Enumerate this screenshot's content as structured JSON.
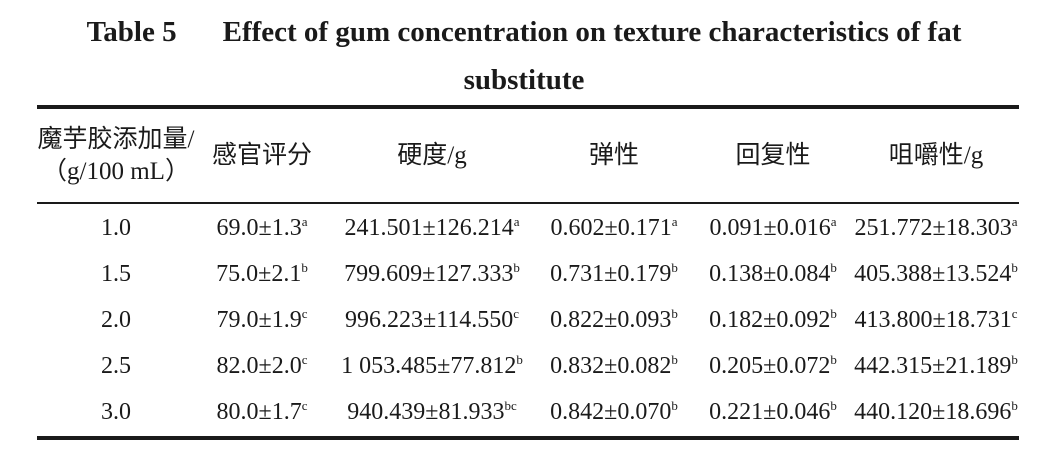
{
  "caption": {
    "number": "Table 5",
    "title_line1": "Effect of gum concentration on texture characteristics of fat",
    "title_line2": "substitute"
  },
  "table": {
    "headers": [
      {
        "line1": "魔芋胶添加量/",
        "line2": "（g/100 mL）"
      },
      {
        "line1": "感官评分",
        "line2": ""
      },
      {
        "line1": "硬度/g",
        "line2": ""
      },
      {
        "line1": "弹性",
        "line2": ""
      },
      {
        "line1": "回复性",
        "line2": ""
      },
      {
        "line1": "咀嚼性/g",
        "line2": ""
      }
    ],
    "rows": [
      {
        "cells": [
          {
            "v": "1.0",
            "s": ""
          },
          {
            "v": "69.0±1.3",
            "s": "a"
          },
          {
            "v": "241.501±126.214",
            "s": "a"
          },
          {
            "v": "0.602±0.171",
            "s": "a"
          },
          {
            "v": "0.091±0.016",
            "s": "a"
          },
          {
            "v": "251.772±18.303",
            "s": "a"
          }
        ]
      },
      {
        "cells": [
          {
            "v": "1.5",
            "s": ""
          },
          {
            "v": "75.0±2.1",
            "s": "b"
          },
          {
            "v": "799.609±127.333",
            "s": "b"
          },
          {
            "v": "0.731±0.179",
            "s": "b"
          },
          {
            "v": "0.138±0.084",
            "s": "b"
          },
          {
            "v": "405.388±13.524",
            "s": "b"
          }
        ]
      },
      {
        "cells": [
          {
            "v": "2.0",
            "s": ""
          },
          {
            "v": "79.0±1.9",
            "s": "c"
          },
          {
            "v": "996.223±114.550",
            "s": "c"
          },
          {
            "v": "0.822±0.093",
            "s": "b"
          },
          {
            "v": "0.182±0.092",
            "s": "b"
          },
          {
            "v": "413.800±18.731",
            "s": "c"
          }
        ]
      },
      {
        "cells": [
          {
            "v": "2.5",
            "s": ""
          },
          {
            "v": "82.0±2.0",
            "s": "c"
          },
          {
            "v": "1 053.485±77.812",
            "s": "b"
          },
          {
            "v": "0.832±0.082",
            "s": "b"
          },
          {
            "v": "0.205±0.072",
            "s": "b"
          },
          {
            "v": "442.315±21.189",
            "s": "b"
          }
        ]
      },
      {
        "cells": [
          {
            "v": "3.0",
            "s": ""
          },
          {
            "v": "80.0±1.7",
            "s": "c"
          },
          {
            "v": "940.439±81.933",
            "s": "bc"
          },
          {
            "v": "0.842±0.070",
            "s": "b"
          },
          {
            "v": "0.221±0.046",
            "s": "b"
          },
          {
            "v": "440.120±18.696",
            "s": "b"
          }
        ]
      }
    ]
  }
}
